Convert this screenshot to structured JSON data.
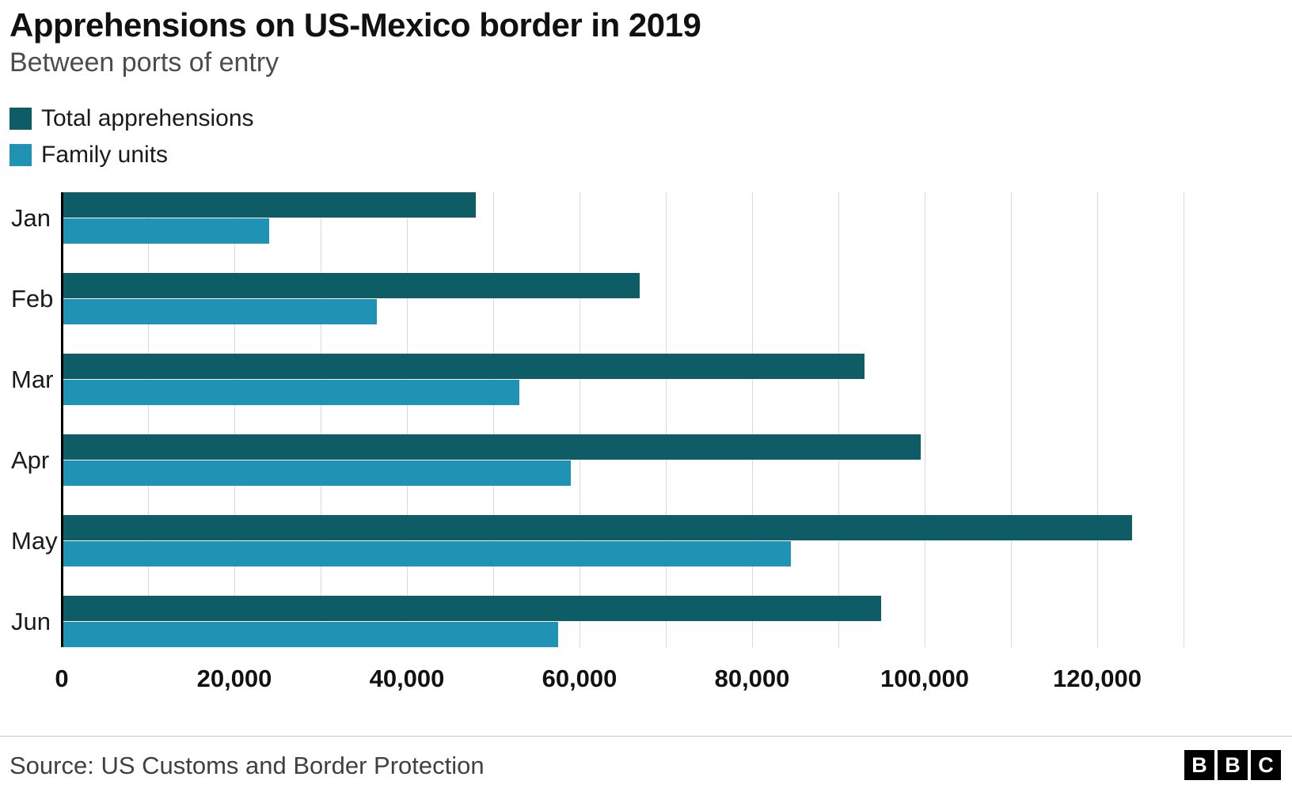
{
  "chart_data": {
    "type": "bar",
    "orientation": "horizontal",
    "title": "Apprehensions on US-Mexico border in 2019",
    "subtitle": "Between ports of entry",
    "categories": [
      "Jan",
      "Feb",
      "Mar",
      "Apr",
      "May",
      "Jun"
    ],
    "series": [
      {
        "name": "Total apprehensions",
        "color": "#0e5c66",
        "values": [
          48000,
          67000,
          93000,
          99500,
          124000,
          95000
        ]
      },
      {
        "name": "Family units",
        "color": "#2093b5",
        "values": [
          24000,
          36500,
          53000,
          59000,
          84500,
          57500
        ]
      }
    ],
    "xlabel": "",
    "ylabel": "",
    "xlim": [
      0,
      130000
    ],
    "x_ticks": [
      0,
      20000,
      40000,
      60000,
      80000,
      100000,
      120000
    ],
    "x_tick_labels": [
      "0",
      "20,000",
      "40,000",
      "60,000",
      "80,000",
      "100,000",
      "120,000"
    ],
    "x_minor_grid_step": 10000,
    "grid": true,
    "legend_position": "top-left"
  },
  "footer": {
    "source": "Source: US Customs and Border Protection",
    "logo_letters": [
      "B",
      "B",
      "C"
    ]
  },
  "colors": {
    "total_apprehensions": "#0e5c66",
    "family_units": "#2093b5",
    "gridline": "#d9d9d9",
    "axis_line": "#000000",
    "subtitle_text": "#4c4c4c",
    "source_text": "#404040"
  }
}
